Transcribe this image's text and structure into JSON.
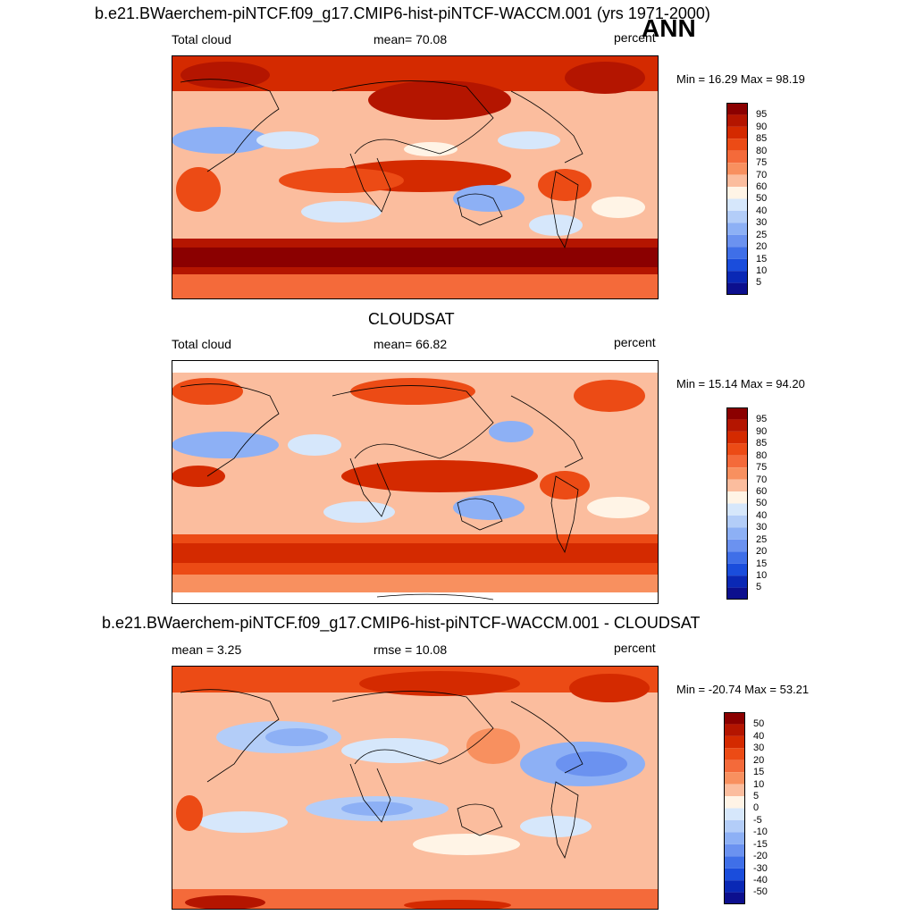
{
  "header": {
    "main_title": "b.e21.BWaerchem-piNTCF.f09_g17.CMIP6-hist-piNTCF-WACCM.001 (yrs 1971-2000)",
    "season": "ANN"
  },
  "panels": [
    {
      "title": "",
      "left_label": "Total cloud",
      "center_label": "mean=  70.08",
      "units": "percent",
      "minmax": "Min =  16.29 Max =  98.19",
      "levels": [
        "95",
        "90",
        "85",
        "80",
        "75",
        "70",
        "60",
        "50",
        "40",
        "30",
        "25",
        "20",
        "15",
        "10",
        "5"
      ],
      "colors": [
        "#8b0000",
        "#b41500",
        "#d42a00",
        "#ec4b15",
        "#f46a3a",
        "#f8905f",
        "#fbbd9e",
        "#fff4e6",
        "#d6e7fb",
        "#b3cdf8",
        "#8db0f5",
        "#6b92f0",
        "#3f6fe8",
        "#1a4ddc",
        "#0a28b5",
        "#0c0f8e"
      ]
    },
    {
      "title": "CLOUDSAT",
      "left_label": "Total cloud",
      "center_label": "mean=  66.82",
      "units": "percent",
      "minmax": "Min =  15.14 Max =  94.20",
      "levels": [
        "95",
        "90",
        "85",
        "80",
        "75",
        "70",
        "60",
        "50",
        "40",
        "30",
        "25",
        "20",
        "15",
        "10",
        "5"
      ],
      "colors": [
        "#8b0000",
        "#b41500",
        "#d42a00",
        "#ec4b15",
        "#f46a3a",
        "#f8905f",
        "#fbbd9e",
        "#fff4e6",
        "#d6e7fb",
        "#b3cdf8",
        "#8db0f5",
        "#6b92f0",
        "#3f6fe8",
        "#1a4ddc",
        "#0a28b5",
        "#0c0f8e"
      ]
    },
    {
      "title": "b.e21.BWaerchem-piNTCF.f09_g17.CMIP6-hist-piNTCF-WACCM.001 - CLOUDSAT",
      "left_label": "mean =   3.25",
      "center_label": "rmse =  10.08",
      "units": "percent",
      "minmax": "Min = -20.74 Max =  53.21",
      "levels": [
        "50",
        "40",
        "30",
        "20",
        "15",
        "10",
        "5",
        "0",
        "-5",
        "-10",
        "-15",
        "-20",
        "-30",
        "-40",
        "-50"
      ],
      "colors": [
        "#8b0000",
        "#b41500",
        "#d42a00",
        "#ec4b15",
        "#f46a3a",
        "#f8905f",
        "#fbbd9e",
        "#fff4e6",
        "#d6e7fb",
        "#b3cdf8",
        "#8db0f5",
        "#6b92f0",
        "#3f6fe8",
        "#1a4ddc",
        "#0a28b5",
        "#0c0f8e"
      ]
    }
  ]
}
